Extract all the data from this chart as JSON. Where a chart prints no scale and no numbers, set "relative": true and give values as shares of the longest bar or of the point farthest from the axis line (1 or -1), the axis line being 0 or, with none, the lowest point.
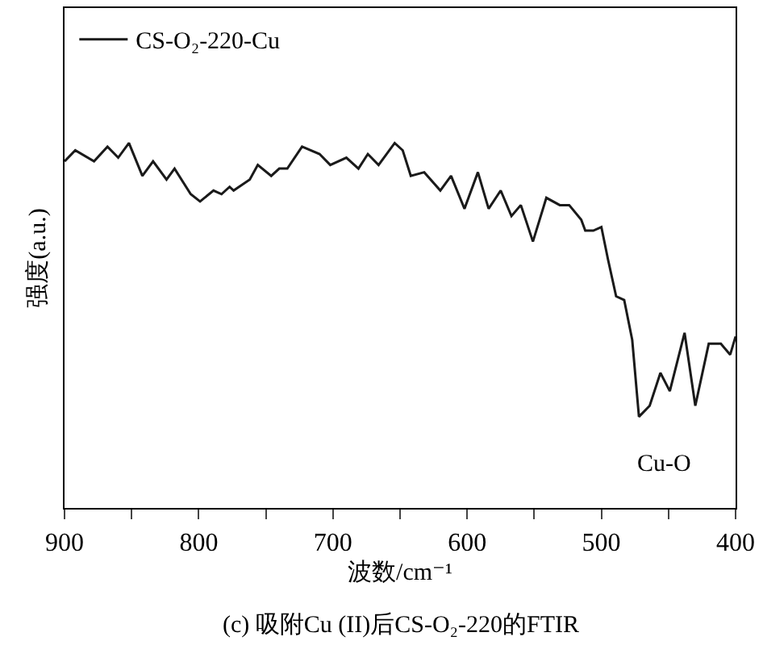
{
  "chart_data": {
    "type": "line",
    "title": "(c) 吸附Cu (II)后CS-O₂-220的FTIR",
    "xlabel": "波数/cm⁻¹",
    "ylabel": "强度(a.u.)",
    "relative": true,
    "x": [
      900,
      892,
      878,
      868,
      860,
      852,
      842,
      834,
      824,
      818,
      806,
      799,
      789,
      783,
      777,
      774,
      762,
      756,
      746,
      740,
      734,
      723,
      710,
      702,
      690,
      681,
      674,
      666,
      654,
      648,
      642,
      632,
      620,
      612,
      602,
      592,
      584,
      575,
      567,
      560,
      551,
      541,
      531,
      524,
      515,
      512,
      506,
      500,
      495,
      489,
      483,
      477,
      472,
      464,
      456,
      449,
      438,
      430,
      420,
      411,
      404,
      400
    ],
    "series": [
      {
        "name": "CS-O₂-220-Cu",
        "color": "#1a1a1a",
        "values": [
          0.95,
          0.98,
          0.95,
          0.99,
          0.96,
          1.0,
          0.91,
          0.95,
          0.9,
          0.93,
          0.86,
          0.84,
          0.87,
          0.86,
          0.88,
          0.87,
          0.9,
          0.94,
          0.91,
          0.93,
          0.93,
          0.99,
          0.97,
          0.94,
          0.96,
          0.93,
          0.97,
          0.94,
          1.0,
          0.98,
          0.91,
          0.92,
          0.87,
          0.91,
          0.82,
          0.92,
          0.82,
          0.87,
          0.8,
          0.83,
          0.73,
          0.85,
          0.83,
          0.83,
          0.79,
          0.76,
          0.76,
          0.77,
          0.68,
          0.58,
          0.57,
          0.46,
          0.25,
          0.28,
          0.37,
          0.32,
          0.48,
          0.28,
          0.45,
          0.45,
          0.42,
          0.47
        ]
      }
    ],
    "xlim": [
      900,
      400
    ],
    "xticks": [
      900,
      {
        "value": 850,
        "label": null
      },
      800,
      {
        "value": 750,
        "label": null
      },
      700,
      {
        "value": 650,
        "label": null
      },
      600,
      {
        "value": 550,
        "label": null
      },
      500,
      {
        "value": 450,
        "label": null
      },
      400
    ],
    "annotations": [
      "Cu-O"
    ],
    "legend": "top left",
    "grid": false,
    "marker": "none",
    "line_style": "solid"
  }
}
